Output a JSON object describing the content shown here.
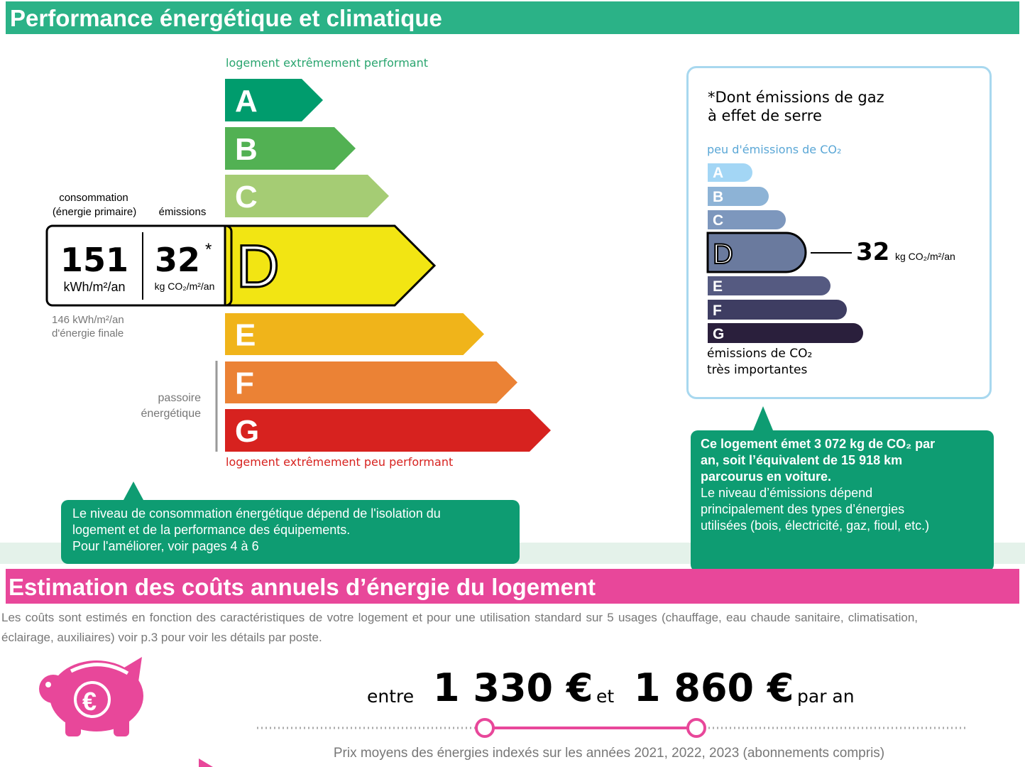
{
  "section1": {
    "title": "Performance énergétique et climatique"
  },
  "energy_scale": {
    "top_label": "logement extrêmement performant",
    "bottom_label": "logement extrêmement peu performant",
    "classes": [
      "A",
      "B",
      "C",
      "D",
      "E",
      "F",
      "G"
    ],
    "colors": [
      "#009c6d",
      "#52b153",
      "#a5cc74",
      "#f2e513",
      "#f0b41a",
      "#eb8235",
      "#d7221f"
    ],
    "current_class": "D"
  },
  "consumption": {
    "label_line1": "consommation",
    "label_line2": "(énergie primaire)",
    "value": 151,
    "unit": "kWh/m²/an",
    "final_line1": "146 kWh/m²/an",
    "final_line2": "d'énergie finale"
  },
  "emissions": {
    "label": "émissions",
    "value": 32,
    "asterisk": "*",
    "unit": "kg CO₂/m²/an"
  },
  "passoire": {
    "line1": "passoire",
    "line2": "énergétique"
  },
  "note1": {
    "lines": [
      "Le niveau de consommation énergétique dépend de l'isolation du",
      "logement et de la performance des équipements.",
      "Pour l'améliorer, voir pages 4 à 6"
    ]
  },
  "ghg_box": {
    "title_line1": "*Dont émissions de gaz",
    "title_line2": "à effet de serre",
    "top_label": "peu d'émissions de CO₂",
    "classes": [
      "A",
      "B",
      "C",
      "D",
      "E",
      "F",
      "G"
    ],
    "colors": [
      "#a3d6f5",
      "#8db3d6",
      "#7d97bd",
      "#6a7a9e",
      "#555a81",
      "#3e3d62",
      "#2a1f3c"
    ],
    "current_class": "D",
    "value": 32,
    "unit": "kg CO₂/m²/an",
    "bottom_line1": "émissions de CO₂",
    "bottom_line2": "très importantes"
  },
  "note2": {
    "bold_lines": [
      "Ce logement émet 3 072 kg de CO₂ par",
      "an, soit l’équivalent de 15 918 km",
      "parcourus en voiture."
    ],
    "lines": [
      "Le niveau d’émissions dépend",
      "principalement des types d’énergies",
      "utilisées (bois, électricité, gaz, fioul, etc.)"
    ]
  },
  "section2": {
    "title": "Estimation des coûts annuels d’énergie du logement",
    "description_line1": "Les coûts sont estimés en fonction des caractéristiques de votre logement et pour une utilisation standard sur 5 usages (chauffage, eau chaude sanitaire, climatisation,",
    "description_line2": "éclairage, auxiliaires) voir p.3 pour voir les détails par poste.",
    "between": "entre",
    "cost_low": "1 330 €",
    "and": "et",
    "cost_high": "1 860 €",
    "per_year": "par an",
    "footnote": "Prix moyens des énergies indexés sur les années 2021, 2022, 2023 (abonnements compris)"
  }
}
